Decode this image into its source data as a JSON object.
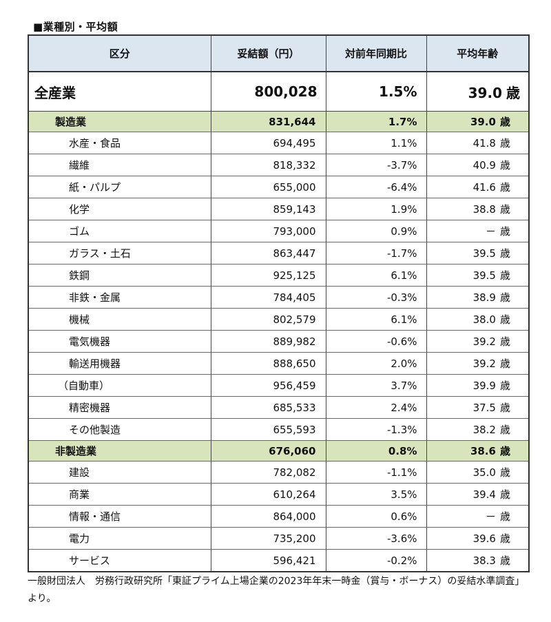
{
  "heading": "■業種別・平均額",
  "columns": [
    "区分",
    "妥結額（円）",
    "対前年同期比",
    "平均年齢"
  ],
  "unit_age": "歳",
  "total": {
    "label": "全産業",
    "amount": "800,028",
    "yoy": "1.5%",
    "age": "39.0"
  },
  "manufacturing": {
    "label": "製造業",
    "amount": "831,644",
    "yoy": "1.7%",
    "age": "39.0",
    "rows": [
      {
        "label": "水産・食品",
        "amount": "694,495",
        "yoy": "1.1%",
        "age": "41.8"
      },
      {
        "label": "繊維",
        "amount": "818,332",
        "yoy": "-3.7%",
        "age": "40.9"
      },
      {
        "label": "紙・パルプ",
        "amount": "655,000",
        "yoy": "-6.4%",
        "age": "41.6"
      },
      {
        "label": "化学",
        "amount": "859,143",
        "yoy": "1.9%",
        "age": "38.8"
      },
      {
        "label": "ゴム",
        "amount": "793,000",
        "yoy": "0.9%",
        "age": "－"
      },
      {
        "label": "ガラス・土石",
        "amount": "863,447",
        "yoy": "-1.7%",
        "age": "39.5"
      },
      {
        "label": "鉄鋼",
        "amount": "925,125",
        "yoy": "6.1%",
        "age": "39.5"
      },
      {
        "label": "非鉄・金属",
        "amount": "784,405",
        "yoy": "-0.3%",
        "age": "38.9"
      },
      {
        "label": "機械",
        "amount": "802,579",
        "yoy": "6.1%",
        "age": "38.0"
      },
      {
        "label": "電気機器",
        "amount": "889,982",
        "yoy": "-0.6%",
        "age": "39.2"
      },
      {
        "label": "輸送用機器",
        "amount": "888,650",
        "yoy": "2.0%",
        "age": "39.2"
      },
      {
        "label": "（自動車）",
        "amount": "956,459",
        "yoy": "3.7%",
        "age": "39.9"
      },
      {
        "label": "精密機器",
        "amount": "685,533",
        "yoy": "2.4%",
        "age": "37.5"
      },
      {
        "label": "その他製造",
        "amount": "655,593",
        "yoy": "-1.3%",
        "age": "38.2"
      }
    ]
  },
  "non_manufacturing": {
    "label": "非製造業",
    "amount": "676,060",
    "yoy": "0.8%",
    "age": "38.6",
    "rows": [
      {
        "label": "建設",
        "amount": "782,082",
        "yoy": "-1.1%",
        "age": "35.0"
      },
      {
        "label": "商業",
        "amount": "610,264",
        "yoy": "3.5%",
        "age": "39.4"
      },
      {
        "label": "情報・通信",
        "amount": "864,000",
        "yoy": "0.6%",
        "age": "－"
      },
      {
        "label": "電力",
        "amount": "735,200",
        "yoy": "-3.6%",
        "age": "39.6"
      },
      {
        "label": "サービス",
        "amount": "596,421",
        "yoy": "-0.2%",
        "age": "38.3"
      }
    ]
  },
  "footnote": "一般財団法人　労務行政研究所「東証プライム上場企業の2023年年末一時金（賞与・ボーナス）の妥結水準調査」より。"
}
